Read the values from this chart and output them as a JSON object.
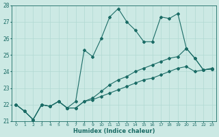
{
  "xlabel": "Humidex (Indice chaleur)",
  "xlim": [
    -0.5,
    23.5
  ],
  "ylim": [
    21,
    28
  ],
  "yticks": [
    21,
    22,
    23,
    24,
    25,
    26,
    27,
    28
  ],
  "xticks": [
    0,
    1,
    2,
    3,
    4,
    5,
    6,
    7,
    8,
    9,
    10,
    11,
    12,
    13,
    14,
    15,
    16,
    17,
    18,
    19,
    20,
    21,
    22,
    23
  ],
  "bg_color": "#cce9e4",
  "grid_color": "#b0d8d2",
  "line_color": "#1a6b65",
  "line1_x": [
    0,
    1,
    2,
    3,
    4,
    5,
    6,
    7,
    8,
    9,
    10,
    11,
    12,
    13,
    14,
    15,
    16,
    17,
    18,
    19,
    20,
    21,
    22,
    23
  ],
  "line1_y": [
    22.0,
    21.6,
    21.1,
    22.0,
    21.9,
    22.2,
    21.8,
    21.8,
    22.2,
    22.3,
    22.5,
    22.7,
    22.9,
    23.1,
    23.3,
    23.5,
    23.6,
    23.8,
    24.0,
    24.2,
    24.3,
    24.0,
    24.1,
    24.15
  ],
  "line2_x": [
    0,
    1,
    2,
    3,
    4,
    5,
    6,
    7,
    8,
    9,
    10,
    11,
    12,
    13,
    14,
    15,
    16,
    17,
    18,
    19,
    20,
    21,
    22,
    23
  ],
  "line2_y": [
    22.0,
    21.6,
    21.1,
    22.0,
    21.9,
    22.2,
    21.8,
    22.2,
    25.3,
    24.9,
    26.0,
    27.3,
    27.8,
    27.0,
    26.5,
    25.8,
    25.8,
    27.3,
    27.2,
    27.5,
    25.4,
    24.8,
    24.1,
    24.2
  ],
  "line3_x": [
    0,
    1,
    2,
    3,
    4,
    5,
    6,
    7,
    8,
    9,
    10,
    11,
    12,
    13,
    14,
    15,
    16,
    17,
    18,
    19,
    20,
    21,
    22,
    23
  ],
  "line3_y": [
    22.0,
    21.6,
    21.1,
    22.0,
    21.9,
    22.2,
    21.8,
    21.8,
    22.2,
    22.4,
    22.8,
    23.2,
    23.5,
    23.7,
    24.0,
    24.2,
    24.4,
    24.6,
    24.8,
    24.9,
    25.4,
    24.8,
    24.1,
    24.15
  ]
}
